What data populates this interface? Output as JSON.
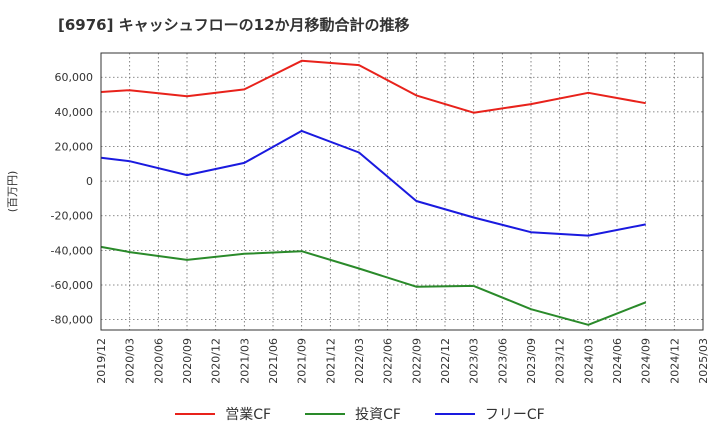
{
  "chart_title": "[6976]  キャッシュフローの12か月移動合計の推移",
  "chart_data": {
    "type": "line",
    "title": "[6976]  キャッシュフローの12か月移動合計の推移",
    "ylabel": "(百万円)",
    "xlabel": "",
    "ylim": [
      -86000,
      74000
    ],
    "yticks": [
      60000,
      40000,
      20000,
      0,
      -20000,
      -40000,
      -60000,
      -80000
    ],
    "ytick_labels": [
      "60,000",
      "40,000",
      "20,000",
      "0",
      "-20,000",
      "-40,000",
      "-60,000",
      "-80,000"
    ],
    "xlim": [
      "2019/12",
      "2025/03"
    ],
    "xtick_labels": [
      "2019/12",
      "2020/03",
      "2020/06",
      "2020/09",
      "2020/12",
      "2021/03",
      "2021/06",
      "2021/09",
      "2021/12",
      "2022/03",
      "2022/06",
      "2022/09",
      "2022/12",
      "2023/03",
      "2023/06",
      "2023/09",
      "2023/12",
      "2024/03",
      "2024/06",
      "2024/09",
      "2024/12",
      "2025/03"
    ],
    "grid": true,
    "legend_position": "bottom",
    "x": [
      "2019/12",
      "2020/03",
      "2020/09",
      "2021/03",
      "2021/09",
      "2022/03",
      "2022/09",
      "2023/03",
      "2023/09",
      "2024/03",
      "2024/09"
    ],
    "series": [
      {
        "name": "営業CF",
        "color": "#e8221b",
        "values": [
          51500,
          52500,
          49000,
          53000,
          69500,
          67000,
          49500,
          39500,
          44500,
          51000,
          45000
        ]
      },
      {
        "name": "投資CF",
        "color": "#2a8a2a",
        "values": [
          -38000,
          -41000,
          -45500,
          -42000,
          -40500,
          -50500,
          -61000,
          -60500,
          -74000,
          -83000,
          -70000
        ]
      },
      {
        "name": "フリーCF",
        "color": "#1a1adf",
        "values": [
          13500,
          11500,
          3500,
          10500,
          29000,
          16500,
          -11500,
          -21000,
          -29500,
          -31500,
          -25000
        ]
      }
    ]
  }
}
